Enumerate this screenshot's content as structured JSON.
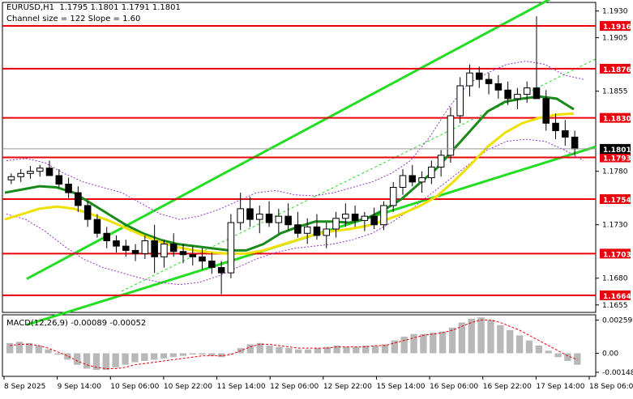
{
  "header": {
    "symbol_line": "EURUSD,H1  1.1795 1.1801 1.1791 1.1801",
    "channel_line": "Channel size = 122 Slope = 1.60"
  },
  "chart_data": [
    {
      "type": "candlestick",
      "symbol": "EURUSD",
      "timeframe": "H1",
      "ohlc_last": {
        "open": 1.1795,
        "high": 1.1801,
        "low": 1.1791,
        "close": 1.1801
      },
      "ylim": [
        1.1648,
        1.1938
      ],
      "y_ticks": [
        1.193,
        1.1905,
        1.1855,
        1.178,
        1.173,
        1.168,
        1.1655
      ],
      "x_ticks": [
        "8 Sep 2025",
        "9 Sep 14:00",
        "10 Sep 06:00",
        "10 Sep 22:00",
        "11 Sep 14:00",
        "12 Sep 06:00",
        "12 Sep 22:00",
        "15 Sep 14:00",
        "16 Sep 06:00",
        "16 Sep 22:00",
        "17 Sep 14:00",
        "18 Sep 06:00"
      ],
      "horizontal_levels": [
        {
          "label": "1.1916",
          "value": 1.1916,
          "color": "#e8000b"
        },
        {
          "label": "1.1876",
          "value": 1.1876,
          "color": "#e8000b"
        },
        {
          "label": "1.1830",
          "value": 1.183,
          "color": "#e8000b"
        },
        {
          "label": "1.1793",
          "value": 1.1793,
          "color": "#e8000b"
        },
        {
          "label": "1.1754",
          "value": 1.1754,
          "color": "#e8000b"
        },
        {
          "label": "1.1703",
          "value": 1.1703,
          "color": "#e8000b"
        },
        {
          "label": "1.1664",
          "value": 1.1664,
          "color": "#e8000b"
        }
      ],
      "current_price": {
        "label": "1.1801",
        "value": 1.1801
      },
      "channel": {
        "color": "#22dd22",
        "lower": [
          [
            0,
            1.165
          ],
          [
            160,
            1.1803
          ]
        ],
        "upper": [
          [
            0,
            1.1693
          ],
          [
            160,
            1.1964
          ]
        ],
        "mid_color": "#22dd22"
      },
      "moving_averages": [
        {
          "color": "#1a8a1a",
          "values": [
            1.176,
            1.1763,
            1.1766,
            1.1765,
            1.176,
            1.175,
            1.174,
            1.173,
            1.1722,
            1.1716,
            1.1712,
            1.171,
            1.1708,
            1.1706,
            1.1706,
            1.1712,
            1.1722,
            1.1728,
            1.1733,
            1.1733,
            1.1732,
            1.1736,
            1.1744,
            1.1754,
            1.1768,
            1.1782,
            1.18,
            1.1818,
            1.1836,
            1.1845,
            1.1848,
            1.185,
            1.1848,
            1.1838
          ]
        },
        {
          "color": "#f0e000",
          "values": [
            1.1735,
            1.174,
            1.1745,
            1.1747,
            1.1745,
            1.174,
            1.1734,
            1.1727,
            1.172,
            1.1714,
            1.1709,
            1.1706,
            1.1704,
            1.1703,
            1.1703,
            1.1706,
            1.1711,
            1.1716,
            1.1721,
            1.1724,
            1.1726,
            1.1729,
            1.1734,
            1.174,
            1.1747,
            1.1756,
            1.177,
            1.1786,
            1.1803,
            1.1816,
            1.1825,
            1.183,
            1.1833,
            1.1834
          ]
        }
      ],
      "envelopes": {
        "color": "#9933cc",
        "upper": [
          1.179,
          1.1792,
          1.1788,
          1.1778,
          1.177,
          1.1765,
          1.176,
          1.175,
          1.174,
          1.1735,
          1.1738,
          1.1744,
          1.1752,
          1.176,
          1.1762,
          1.1758,
          1.1757,
          1.176,
          1.1765,
          1.177,
          1.1778,
          1.179,
          1.1812,
          1.184,
          1.1862,
          1.1872,
          1.188,
          1.1883,
          1.188,
          1.187,
          1.1866
        ],
        "lower": [
          1.174,
          1.1735,
          1.1724,
          1.171,
          1.1698,
          1.169,
          1.1685,
          1.168,
          1.1676,
          1.1674,
          1.1676,
          1.1682,
          1.169,
          1.1698,
          1.1704,
          1.1708,
          1.171,
          1.1712,
          1.1716,
          1.1722,
          1.1732,
          1.1744,
          1.1758,
          1.1772,
          1.1786,
          1.18,
          1.1808,
          1.181,
          1.1808,
          1.18,
          1.179
        ]
      },
      "candles": [
        [
          1.1772,
          1.1778,
          1.1768,
          1.1775
        ],
        [
          1.1775,
          1.1782,
          1.177,
          1.1778
        ],
        [
          1.1778,
          1.1785,
          1.1773,
          1.178
        ],
        [
          1.178,
          1.1786,
          1.1775,
          1.1783
        ],
        [
          1.1783,
          1.179,
          1.1778,
          1.1776
        ],
        [
          1.1776,
          1.1782,
          1.1765,
          1.1768
        ],
        [
          1.1768,
          1.1774,
          1.1755,
          1.176
        ],
        [
          1.176,
          1.1766,
          1.1742,
          1.1748
        ],
        [
          1.1748,
          1.1752,
          1.1728,
          1.1735
        ],
        [
          1.1735,
          1.174,
          1.1718,
          1.1722
        ],
        [
          1.1722,
          1.1728,
          1.1708,
          1.1715
        ],
        [
          1.1715,
          1.172,
          1.1704,
          1.171
        ],
        [
          1.171,
          1.1716,
          1.17,
          1.1706
        ],
        [
          1.1706,
          1.1712,
          1.1696,
          1.1703
        ],
        [
          1.1703,
          1.172,
          1.1698,
          1.1715
        ],
        [
          1.1715,
          1.173,
          1.1685,
          1.17
        ],
        [
          1.17,
          1.1716,
          1.169,
          1.1712
        ],
        [
          1.1712,
          1.1722,
          1.17,
          1.1705
        ],
        [
          1.1705,
          1.1712,
          1.1694,
          1.1702
        ],
        [
          1.1702,
          1.171,
          1.1692,
          1.17
        ],
        [
          1.17,
          1.1708,
          1.1688,
          1.1696
        ],
        [
          1.1696,
          1.1704,
          1.1684,
          1.169
        ],
        [
          1.169,
          1.1696,
          1.1665,
          1.1685
        ],
        [
          1.1685,
          1.174,
          1.168,
          1.1732
        ],
        [
          1.1732,
          1.176,
          1.1725,
          1.1745
        ],
        [
          1.1745,
          1.1756,
          1.1728,
          1.1735
        ],
        [
          1.1735,
          1.1748,
          1.1722,
          1.174
        ],
        [
          1.174,
          1.1752,
          1.1728,
          1.1732
        ],
        [
          1.1732,
          1.1745,
          1.1722,
          1.1738
        ],
        [
          1.1738,
          1.175,
          1.1725,
          1.173
        ],
        [
          1.173,
          1.1742,
          1.1718,
          1.1722
        ],
        [
          1.1722,
          1.1736,
          1.1712,
          1.1728
        ],
        [
          1.1728,
          1.174,
          1.1716,
          1.172
        ],
        [
          1.172,
          1.1732,
          1.1708,
          1.1726
        ],
        [
          1.1726,
          1.1742,
          1.1718,
          1.1736
        ],
        [
          1.1736,
          1.175,
          1.1728,
          1.174
        ],
        [
          1.174,
          1.1748,
          1.1728,
          1.1734
        ],
        [
          1.1734,
          1.1742,
          1.1724,
          1.1738
        ],
        [
          1.1738,
          1.1746,
          1.1726,
          1.173
        ],
        [
          1.173,
          1.1752,
          1.1725,
          1.1748
        ],
        [
          1.1748,
          1.177,
          1.1742,
          1.1765
        ],
        [
          1.1765,
          1.1782,
          1.1758,
          1.1776
        ],
        [
          1.1776,
          1.1786,
          1.1766,
          1.177
        ],
        [
          1.177,
          1.178,
          1.176,
          1.1774
        ],
        [
          1.1774,
          1.179,
          1.1768,
          1.1784
        ],
        [
          1.1784,
          1.18,
          1.1775,
          1.1795
        ],
        [
          1.1795,
          1.184,
          1.1788,
          1.1832
        ],
        [
          1.1832,
          1.1868,
          1.1825,
          1.186
        ],
        [
          1.186,
          1.188,
          1.185,
          1.1872
        ],
        [
          1.1872,
          1.1878,
          1.1858,
          1.1866
        ],
        [
          1.1866,
          1.1872,
          1.1852,
          1.1862
        ],
        [
          1.1862,
          1.187,
          1.1848,
          1.1856
        ],
        [
          1.1856,
          1.1864,
          1.1842,
          1.1848
        ],
        [
          1.1848,
          1.1858,
          1.1838,
          1.1852
        ],
        [
          1.1852,
          1.1864,
          1.1844,
          1.1858
        ],
        [
          1.1858,
          1.1925,
          1.185,
          1.1848
        ],
        [
          1.1848,
          1.1856,
          1.1818,
          1.1825
        ],
        [
          1.1825,
          1.1834,
          1.181,
          1.1818
        ],
        [
          1.1818,
          1.1828,
          1.1804,
          1.1812
        ],
        [
          1.1812,
          1.1818,
          1.1795,
          1.1801
        ]
      ]
    },
    {
      "type": "histogram",
      "name": "MACD(12,26,9)",
      "header_values": "MACD(12,26,9) -0.00089 -0.00052",
      "ylim": [
        -0.0018,
        0.003
      ],
      "y_ticks": [
        "0.00259",
        "0.00",
        "-0.00148"
      ],
      "y_tick_values": [
        0.00259,
        0.0,
        -0.00148
      ],
      "histogram": [
        0.0008,
        0.0009,
        0.0008,
        0.0006,
        0.0003,
        -0.0001,
        -0.0005,
        -0.0009,
        -0.0012,
        -0.0013,
        -0.0013,
        -0.0011,
        -0.0009,
        -0.0007,
        -0.0006,
        -0.0005,
        -0.0004,
        -0.0003,
        -0.0002,
        -0.0001,
        -0.0001,
        -0.0002,
        -0.0003,
        0.0,
        0.0004,
        0.0007,
        0.0008,
        0.0006,
        0.0005,
        0.0004,
        0.0003,
        0.0003,
        0.0004,
        0.0005,
        0.0006,
        0.0005,
        0.0005,
        0.0006,
        0.0006,
        0.0007,
        0.001,
        0.0013,
        0.0015,
        0.0015,
        0.0016,
        0.0017,
        0.002,
        0.0024,
        0.0027,
        0.0028,
        0.0026,
        0.0022,
        0.0018,
        0.0014,
        0.001,
        0.0006,
        0.0002,
        -0.0003,
        -0.0006,
        -0.0009
      ],
      "signal": [
        0.0006,
        0.0007,
        0.0007,
        0.0006,
        0.0004,
        0.0001,
        -0.0002,
        -0.0006,
        -0.0009,
        -0.0011,
        -0.0012,
        -0.0012,
        -0.0011,
        -0.0009,
        -0.0008,
        -0.0007,
        -0.0006,
        -0.0005,
        -0.0004,
        -0.0003,
        -0.0002,
        -0.0002,
        -0.0002,
        -0.0001,
        0.0002,
        0.0005,
        0.0007,
        0.0007,
        0.0006,
        0.0005,
        0.0004,
        0.0004,
        0.0004,
        0.0004,
        0.0005,
        0.0005,
        0.0005,
        0.0005,
        0.0006,
        0.0006,
        0.0008,
        0.001,
        0.0012,
        0.0014,
        0.0015,
        0.0016,
        0.0018,
        0.0021,
        0.0024,
        0.0026,
        0.0026,
        0.0024,
        0.0021,
        0.0018,
        0.0014,
        0.001,
        0.0006,
        0.0002,
        -0.0002,
        -0.0005
      ],
      "hist_color": "#b8b8b8",
      "signal_color": "#e8000b"
    }
  ]
}
